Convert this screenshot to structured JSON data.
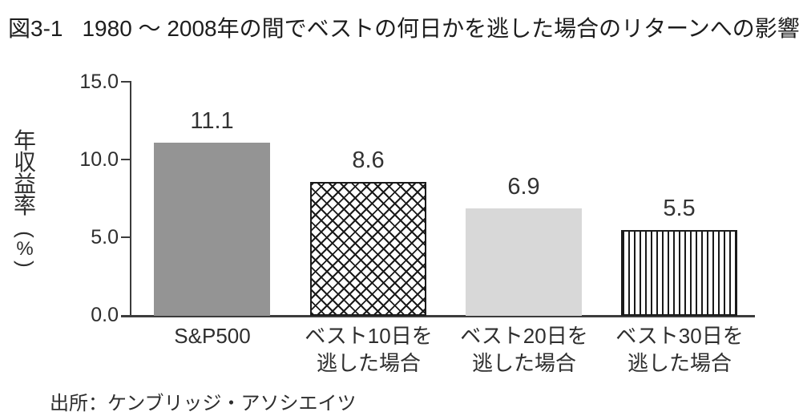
{
  "figure": {
    "label": "図3-1",
    "title": "1980 ～ 2008年の間でベストの何日かを逃した場合のリターンへの影響"
  },
  "chart_data": {
    "type": "bar",
    "title": "1980 ～ 2008年の間でベストの何日かを逃した場合のリターンへの影響",
    "categories": [
      "S&P500",
      "ベスト10日を逃した場合",
      "ベスト20日を逃した場合",
      "ベスト30日を逃した場合"
    ],
    "values": [
      11.1,
      8.6,
      6.9,
      5.5
    ],
    "xlabel": "",
    "ylabel": "年収益率（%）",
    "ylim": [
      0,
      15
    ],
    "yticks": [
      "15.0",
      "10.0",
      "5.0",
      "0.0"
    ],
    "grid": false,
    "legend": "none",
    "bar_styles": [
      "solid-medium-gray",
      "crosshatch",
      "solid-light-gray",
      "vertical-stripes"
    ]
  },
  "ylabel_chars": [
    "年",
    "収",
    "益",
    "率"
  ],
  "unit_display": {
    "open": "(",
    "pct": "%",
    "close": ")"
  },
  "bars": [
    {
      "line1": "S&P500",
      "line2": "",
      "value": "11.1"
    },
    {
      "line1": "ベスト10日を",
      "line2": "逃した場合",
      "value": "8.6"
    },
    {
      "line1": "ベスト20日を",
      "line2": "逃した場合",
      "value": "6.9"
    },
    {
      "line1": "ベスト30日を",
      "line2": "逃した場合",
      "value": "5.5"
    }
  ],
  "source": "出所：ケンブリッジ・アソシエイツ",
  "colors": {
    "bar_solid_medium": "#949494",
    "bar_solid_light": "#d8d8d8",
    "pattern_line": "#1a1a1a",
    "axis": "#3c3c3c",
    "text": "#2e2e2e"
  }
}
